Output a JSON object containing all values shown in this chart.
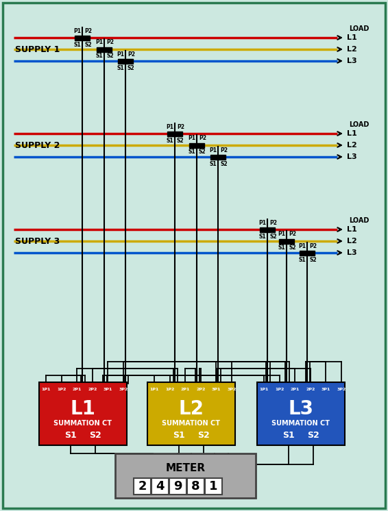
{
  "bg_color": "#cce8e0",
  "border_color": "#2a7a50",
  "line_colors": [
    "#cc0000",
    "#ccaa00",
    "#0055cc"
  ],
  "supply_labels": [
    "SUPPLY 1",
    "SUPPLY 2",
    "SUPPLY 3"
  ],
  "ct_box_colors": [
    "#cc1111",
    "#ccaa00",
    "#2255bb"
  ],
  "ct_box_labels": [
    "L1",
    "L2",
    "L3"
  ],
  "meter_digits": "24981",
  "wire_color": "#000000",
  "lw_bus": 2.5,
  "lw_wire": 1.5,
  "lw_wire2": 1.2
}
